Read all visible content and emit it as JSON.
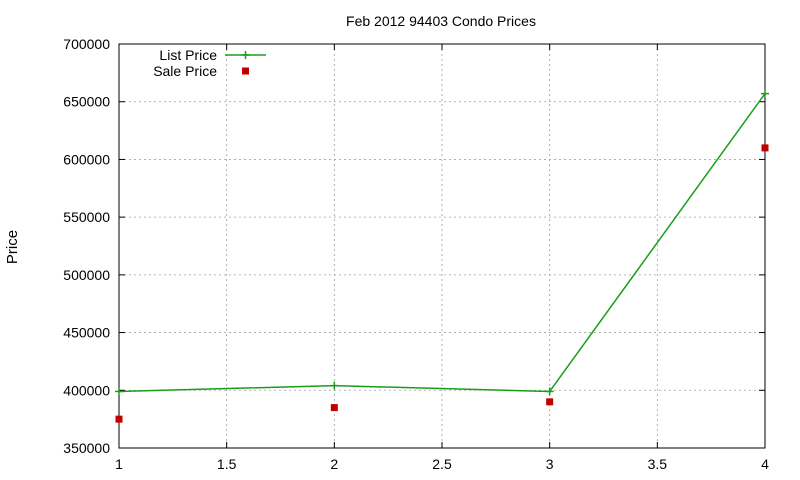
{
  "chart_data": {
    "type": "line",
    "title": "Feb 2012 94403 Condo Prices",
    "xlabel": "",
    "ylabel": "Price",
    "xlim": [
      1,
      4
    ],
    "ylim": [
      350000,
      700000
    ],
    "xticks": [
      1,
      1.5,
      2,
      2.5,
      3,
      3.5,
      4
    ],
    "xtick_labels": [
      "1",
      "1.5",
      "2",
      "2.5",
      "3",
      "3.5",
      "4"
    ],
    "yticks": [
      350000,
      400000,
      450000,
      500000,
      550000,
      600000,
      650000,
      700000
    ],
    "ytick_labels": [
      "350000",
      "400000",
      "450000",
      "500000",
      "550000",
      "600000",
      "650000",
      "700000"
    ],
    "grid": true,
    "legend_position": "top-left",
    "series": [
      {
        "name": "List Price",
        "style": "line-with-markers",
        "marker": "plus",
        "color": "#1a9e1a",
        "x": [
          1,
          2,
          3,
          4
        ],
        "y": [
          399000,
          404000,
          399000,
          657000
        ]
      },
      {
        "name": "Sale Price",
        "style": "points",
        "marker": "square",
        "color": "#c00000",
        "x": [
          1,
          2,
          3,
          4
        ],
        "y": [
          375000,
          385000,
          390000,
          610000
        ]
      }
    ]
  }
}
